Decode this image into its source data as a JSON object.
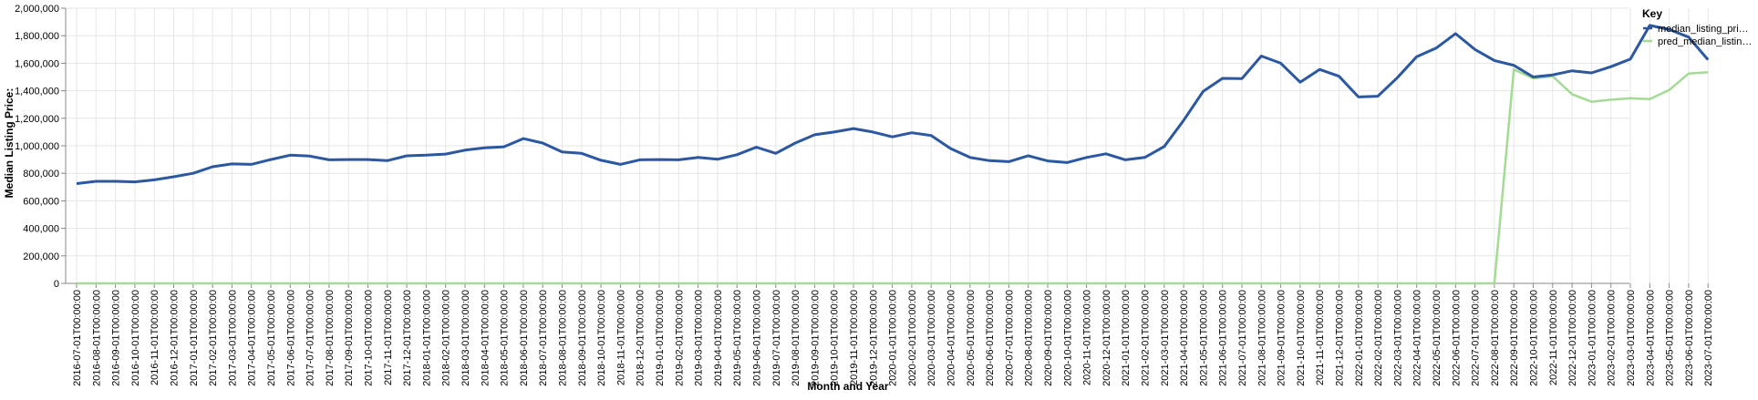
{
  "chart_data": {
    "type": "line",
    "title": "",
    "xlabel": "Month and Year",
    "ylabel": "Median Listing Price:",
    "ylim": [
      0,
      2000000
    ],
    "yticks": [
      0,
      200000,
      400000,
      600000,
      800000,
      1000000,
      1200000,
      1400000,
      1600000,
      1800000,
      2000000
    ],
    "ytick_labels": [
      "0",
      "200,000",
      "400,000",
      "600,000",
      "800,000",
      "1,000,000",
      "1,200,000",
      "1,400,000",
      "1,600,000",
      "1,800,000",
      "2,000,000"
    ],
    "grid": true,
    "legend_position": "right",
    "x": [
      "2016-07-01T00:00:00",
      "2016-08-01T00:00:00",
      "2016-09-01T00:00:00",
      "2016-10-01T00:00:00",
      "2016-11-01T00:00:00",
      "2016-12-01T00:00:00",
      "2017-01-01T00:00:00",
      "2017-02-01T00:00:00",
      "2017-03-01T00:00:00",
      "2017-04-01T00:00:00",
      "2017-05-01T00:00:00",
      "2017-06-01T00:00:00",
      "2017-07-01T00:00:00",
      "2017-08-01T00:00:00",
      "2017-09-01T00:00:00",
      "2017-10-01T00:00:00",
      "2017-11-01T00:00:00",
      "2017-12-01T00:00:00",
      "2018-01-01T00:00:00",
      "2018-02-01T00:00:00",
      "2018-03-01T00:00:00",
      "2018-04-01T00:00:00",
      "2018-05-01T00:00:00",
      "2018-06-01T00:00:00",
      "2018-07-01T00:00:00",
      "2018-08-01T00:00:00",
      "2018-09-01T00:00:00",
      "2018-10-01T00:00:00",
      "2018-11-01T00:00:00",
      "2018-12-01T00:00:00",
      "2019-01-01T00:00:00",
      "2019-02-01T00:00:00",
      "2019-03-01T00:00:00",
      "2019-04-01T00:00:00",
      "2019-05-01T00:00:00",
      "2019-06-01T00:00:00",
      "2019-07-01T00:00:00",
      "2019-08-01T00:00:00",
      "2019-09-01T00:00:00",
      "2019-10-01T00:00:00",
      "2019-11-01T00:00:00",
      "2019-12-01T00:00:00",
      "2020-01-01T00:00:00",
      "2020-02-01T00:00:00",
      "2020-03-01T00:00:00",
      "2020-04-01T00:00:00",
      "2020-05-01T00:00:00",
      "2020-06-01T00:00:00",
      "2020-07-01T00:00:00",
      "2020-08-01T00:00:00",
      "2020-09-01T00:00:00",
      "2020-10-01T00:00:00",
      "2020-11-01T00:00:00",
      "2020-12-01T00:00:00",
      "2021-01-01T00:00:00",
      "2021-02-01T00:00:00",
      "2021-03-01T00:00:00",
      "2021-04-01T00:00:00",
      "2021-05-01T00:00:00",
      "2021-06-01T00:00:00",
      "2021-07-01T00:00:00",
      "2021-08-01T00:00:00",
      "2021-09-01T00:00:00",
      "2021-10-01T00:00:00",
      "2021-11-01T00:00:00",
      "2021-12-01T00:00:00",
      "2022-01-01T00:00:00",
      "2022-02-01T00:00:00",
      "2022-03-01T00:00:00",
      "2022-04-01T00:00:00",
      "2022-05-01T00:00:00",
      "2022-06-01T00:00:00",
      "2022-07-01T00:00:00",
      "2022-08-01T00:00:00",
      "2022-09-01T00:00:00",
      "2022-10-01T00:00:00",
      "2022-11-01T00:00:00",
      "2022-12-01T00:00:00",
      "2023-01-01T00:00:00",
      "2023-02-01T00:00:00",
      "2023-03-01T00:00:00",
      "2023-04-01T00:00:00",
      "2023-05-01T00:00:00",
      "2023-06-01T00:00:00",
      "2023-07-01T00:00:00"
    ],
    "series": [
      {
        "name": "median_listing_pri…",
        "color": "#2b58a0",
        "values": [
          725000,
          742000,
          742000,
          738000,
          752000,
          775000,
          800000,
          848000,
          868000,
          865000,
          900000,
          932000,
          925000,
          898000,
          900000,
          900000,
          892000,
          927000,
          932000,
          940000,
          968000,
          985000,
          993000,
          1052000,
          1020000,
          955000,
          945000,
          895000,
          865000,
          898000,
          900000,
          898000,
          915000,
          902000,
          935000,
          990000,
          945000,
          1020000,
          1080000,
          1100000,
          1125000,
          1100000,
          1065000,
          1095000,
          1075000,
          980000,
          915000,
          892000,
          885000,
          928000,
          890000,
          878000,
          915000,
          942000,
          898000,
          915000,
          995000,
          1185000,
          1395000,
          1490000,
          1488000,
          1652000,
          1600000,
          1462000,
          1555000,
          1505000,
          1355000,
          1360000,
          1495000,
          1648000,
          1710000,
          1815000,
          1700000,
          1620000,
          1585000,
          1500000,
          1515000,
          1545000,
          1530000,
          1575000,
          1630000,
          1875000,
          1845000,
          1790000,
          1625000
        ]
      },
      {
        "name": "pred_median_listin…",
        "color": "#a3db95",
        "values": [
          0,
          0,
          0,
          0,
          0,
          0,
          0,
          0,
          0,
          0,
          0,
          0,
          0,
          0,
          0,
          0,
          0,
          0,
          0,
          0,
          0,
          0,
          0,
          0,
          0,
          0,
          0,
          0,
          0,
          0,
          0,
          0,
          0,
          0,
          0,
          0,
          0,
          0,
          0,
          0,
          0,
          0,
          0,
          0,
          0,
          0,
          0,
          0,
          0,
          0,
          0,
          0,
          0,
          0,
          0,
          0,
          0,
          0,
          0,
          0,
          0,
          0,
          0,
          0,
          0,
          0,
          0,
          0,
          0,
          0,
          0,
          0,
          0,
          0,
          1555000,
          1490000,
          1505000,
          1375000,
          1320000,
          1335000,
          1345000,
          1340000,
          1405000,
          1525000,
          1535000
        ]
      }
    ],
    "legend_title": "Key"
  }
}
